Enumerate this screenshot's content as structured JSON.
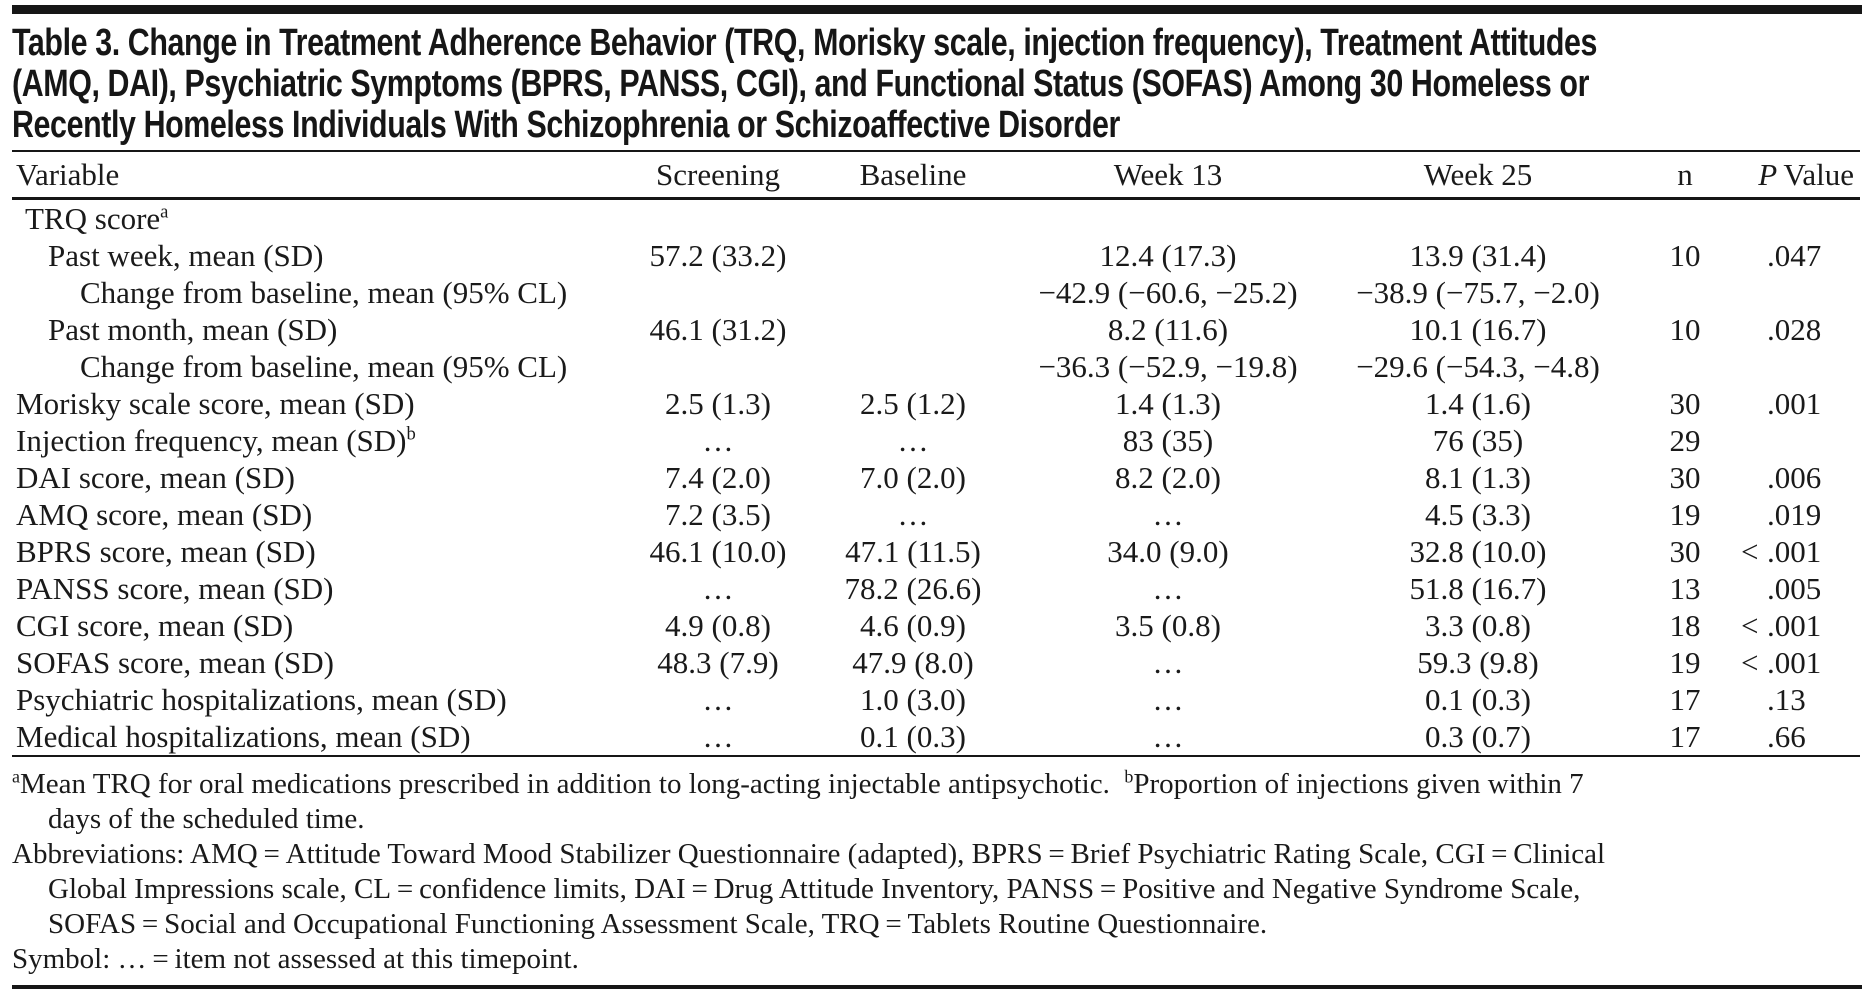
{
  "table": {
    "title_lines": [
      "Table 3. Change in Treatment Adherence Behavior (TRQ, Morisky scale, injection frequency), Treatment Attitudes",
      "(AMQ, DAI), Psychiatric Symptoms (BPRS, PANSS, CGI), and Functional Status (SOFAS) Among 30 Homeless or",
      "Recently Homeless Individuals With Schizophrenia or Schizoaffective Disorder"
    ],
    "columns": [
      {
        "key": "variable",
        "label": "Variable",
        "align": "left"
      },
      {
        "key": "screening",
        "label": "Screening",
        "align": "center"
      },
      {
        "key": "baseline",
        "label": "Baseline",
        "align": "center"
      },
      {
        "key": "week13",
        "label": "Week 13",
        "align": "center"
      },
      {
        "key": "week25",
        "label": "Week 25",
        "align": "center"
      },
      {
        "key": "n",
        "label": "n",
        "align": "center"
      },
      {
        "key": "pvalue",
        "label": " Value",
        "italic_prefix": "P",
        "align": "right"
      }
    ],
    "rows": [
      {
        "label": "TRQ score",
        "sup": "a",
        "indent": 1,
        "cells": [
          "",
          "",
          "",
          "",
          "",
          ""
        ]
      },
      {
        "label": "Past week, mean (SD)",
        "indent": 2,
        "cells": [
          "57.2 (33.2)",
          "",
          "12.4 (17.3)",
          "13.9 (31.4)",
          "10",
          ".047"
        ]
      },
      {
        "label": "Change from baseline, mean (95% CL)",
        "indent": 3,
        "cells": [
          "",
          "",
          "−42.9 (−60.6, −25.2)",
          "−38.9 (−75.7, −2.0)",
          "",
          ""
        ]
      },
      {
        "label": "Past month, mean (SD)",
        "indent": 2,
        "cells": [
          "46.1 (31.2)",
          "",
          "8.2 (11.6)",
          "10.1 (16.7)",
          "10",
          ".028"
        ]
      },
      {
        "label": "Change from baseline, mean (95% CL)",
        "indent": 3,
        "cells": [
          "",
          "",
          "−36.3 (−52.9, −19.8)",
          "−29.6 (−54.3, −4.8)",
          "",
          ""
        ]
      },
      {
        "label": "Morisky scale score, mean (SD)",
        "indent": 0,
        "cells": [
          "2.5 (1.3)",
          "2.5 (1.2)",
          "1.4 (1.3)",
          "1.4 (1.6)",
          "30",
          ".001"
        ]
      },
      {
        "label": "Injection frequency, mean (SD)",
        "sup": "b",
        "indent": 0,
        "cells": [
          "…",
          "…",
          "83 (35)",
          "76 (35)",
          "29",
          ""
        ]
      },
      {
        "label": "DAI score, mean (SD)",
        "indent": 0,
        "cells": [
          "7.4 (2.0)",
          "7.0 (2.0)",
          "8.2 (2.0)",
          "8.1 (1.3)",
          "30",
          ".006"
        ]
      },
      {
        "label": "AMQ score, mean (SD)",
        "indent": 0,
        "cells": [
          "7.2 (3.5)",
          "…",
          "…",
          "4.5 (3.3)",
          "19",
          ".019"
        ]
      },
      {
        "label": "BPRS score, mean (SD)",
        "indent": 0,
        "cells": [
          "46.1 (10.0)",
          "47.1 (11.5)",
          "34.0 (9.0)",
          "32.8 (10.0)",
          "30",
          "<.001"
        ]
      },
      {
        "label": "PANSS score, mean (SD)",
        "indent": 0,
        "cells": [
          "…",
          "78.2 (26.6)",
          "…",
          "51.8 (16.7)",
          "13",
          ".005"
        ]
      },
      {
        "label": "CGI score, mean (SD)",
        "indent": 0,
        "cells": [
          "4.9 (0.8)",
          "4.6 (0.9)",
          "3.5 (0.8)",
          "3.3 (0.8)",
          "18",
          "<.001"
        ]
      },
      {
        "label": "SOFAS score, mean (SD)",
        "indent": 0,
        "cells": [
          "48.3 (7.9)",
          "47.9 (8.0)",
          "…",
          "59.3 (9.8)",
          "19",
          "<.001"
        ]
      },
      {
        "label": "Psychiatric hospitalizations, mean (SD)",
        "indent": 0,
        "cells": [
          "…",
          "1.0 (3.0)",
          "…",
          "0.1 (0.3)",
          "17",
          ".13"
        ]
      },
      {
        "label": "Medical hospitalizations, mean (SD)",
        "indent": 0,
        "cells": [
          "…",
          "0.1 (0.3)",
          "…",
          "0.3 (0.7)",
          "17",
          ".66"
        ]
      }
    ],
    "footnotes": [
      {
        "lines": [
          {
            "indent": false,
            "segments": [
              {
                "sup": "a"
              },
              {
                "text": "Mean TRQ for oral medications prescribed in addition to long-acting injectable antipsychotic. "
              },
              {
                "sup": "b"
              },
              {
                "text": "Proportion of injections given within 7"
              }
            ]
          },
          {
            "indent": true,
            "segments": [
              {
                "text": "days of the scheduled time."
              }
            ]
          }
        ]
      },
      {
        "lines": [
          {
            "indent": false,
            "segments": [
              {
                "text": "Abbreviations: AMQ = Attitude Toward Mood Stabilizer Questionnaire (adapted), BPRS = Brief Psychiatric Rating Scale, CGI = Clinical"
              }
            ]
          },
          {
            "indent": true,
            "segments": [
              {
                "text": "Global Impressions scale, CL = confidence limits, DAI = Drug Attitude Inventory, PANSS = Positive and Negative Syndrome Scale,"
              }
            ]
          },
          {
            "indent": true,
            "segments": [
              {
                "text": "SOFAS = Social and Occupational Functioning Assessment Scale, TRQ = Tablets Routine Questionnaire."
              }
            ]
          }
        ]
      },
      {
        "lines": [
          {
            "indent": false,
            "segments": [
              {
                "text": "Symbol: … = item not assessed at this timepoint."
              }
            ]
          }
        ]
      }
    ],
    "colors": {
      "ink": "#1a1a1a",
      "rule": "#161616",
      "background": "#ffffff"
    }
  }
}
